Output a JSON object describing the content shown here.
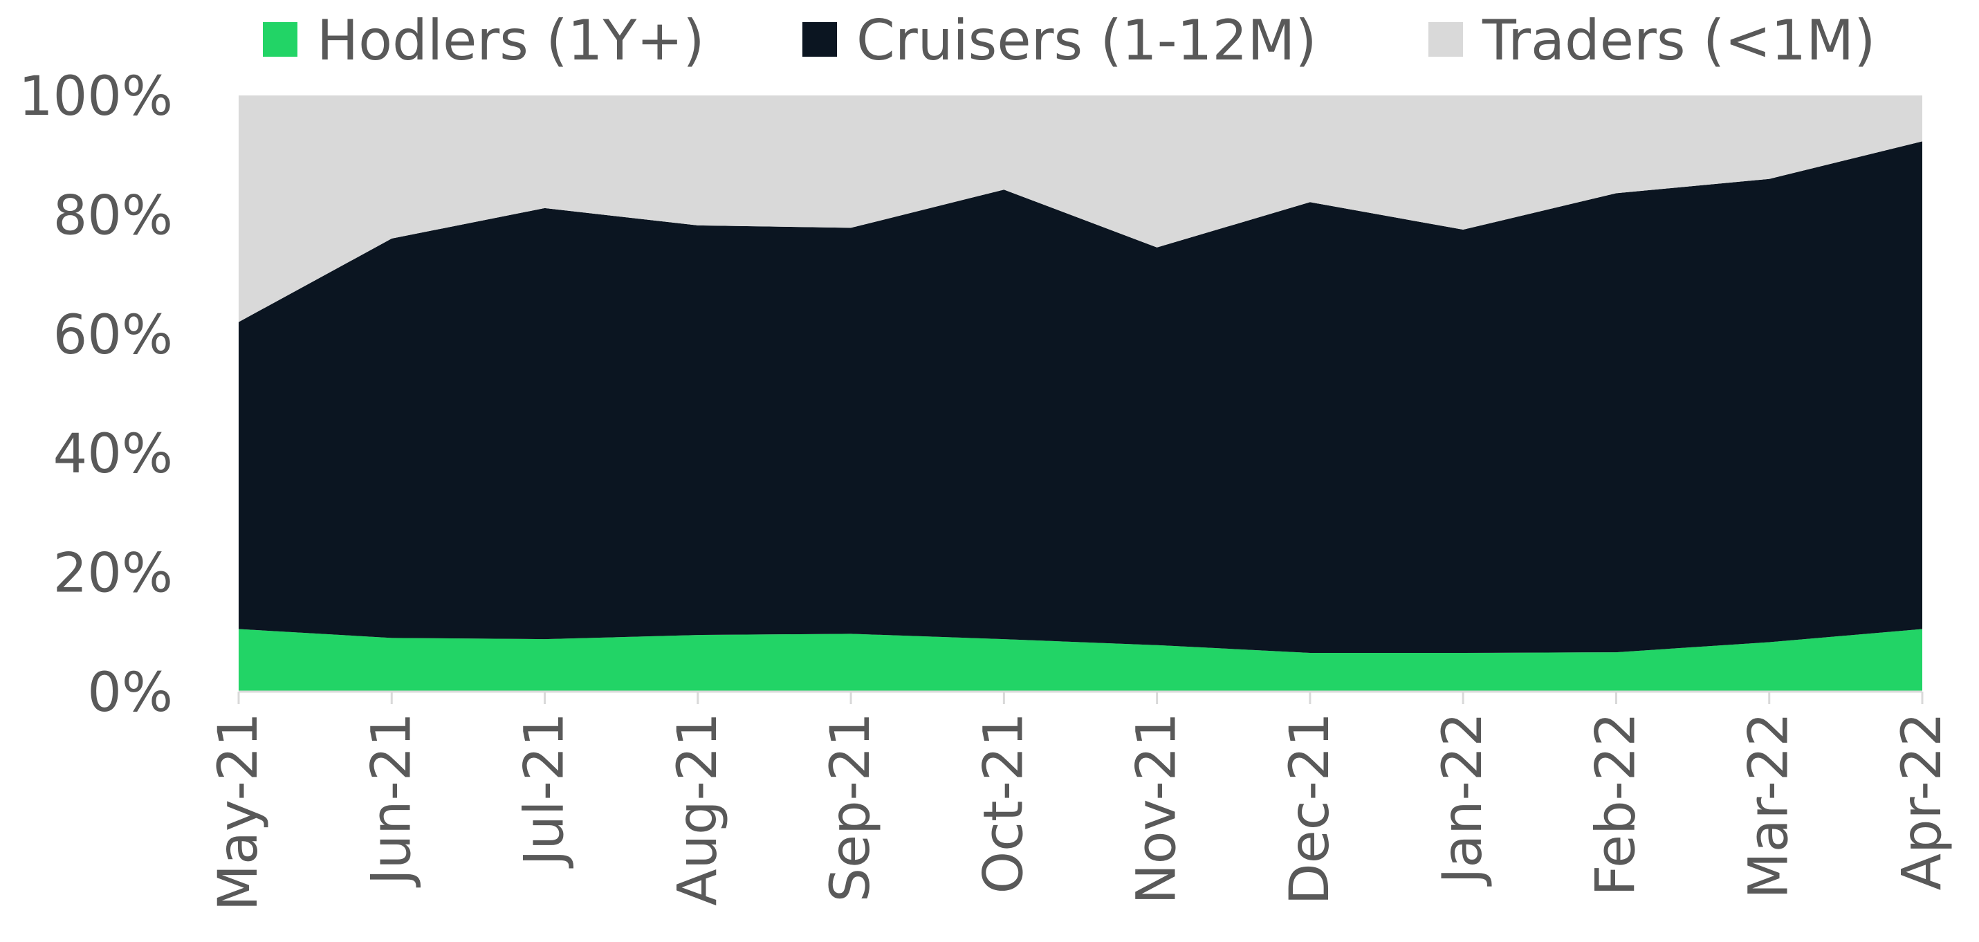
{
  "chart_data": {
    "type": "area",
    "stacked": true,
    "percent_stacked": true,
    "categories": [
      "May-21",
      "Jun-21",
      "Jul-21",
      "Aug-21",
      "Sep-21",
      "Oct-21",
      "Nov-21",
      "Dec-21",
      "Jan-22",
      "Feb-22",
      "Mar-22",
      "Apr-22"
    ],
    "series": [
      {
        "name": "Hodlers (1Y+)",
        "color": "#22d466",
        "values": [
          10.5,
          9.0,
          8.8,
          9.5,
          9.7,
          8.8,
          7.8,
          6.5,
          6.5,
          6.6,
          8.3,
          10.5
        ]
      },
      {
        "name": "Cruisers (1-12M)",
        "color": "#0b1521",
        "values": [
          51.5,
          67.0,
          72.3,
          68.7,
          68.1,
          75.4,
          66.7,
          75.6,
          71.0,
          77.0,
          77.7,
          81.8
        ]
      },
      {
        "name": "Traders (<1M)",
        "color": "#d9d9d9",
        "values": [
          38.0,
          24.0,
          18.9,
          21.8,
          22.2,
          15.8,
          25.5,
          17.9,
          22.5,
          16.4,
          14.0,
          7.7
        ]
      }
    ],
    "y_ticks": [
      "0%",
      "20%",
      "40%",
      "60%",
      "80%",
      "100%"
    ],
    "ylim": [
      0,
      100
    ],
    "title": "",
    "xlabel": "",
    "ylabel": "",
    "legend_position": "top",
    "grid": false
  }
}
